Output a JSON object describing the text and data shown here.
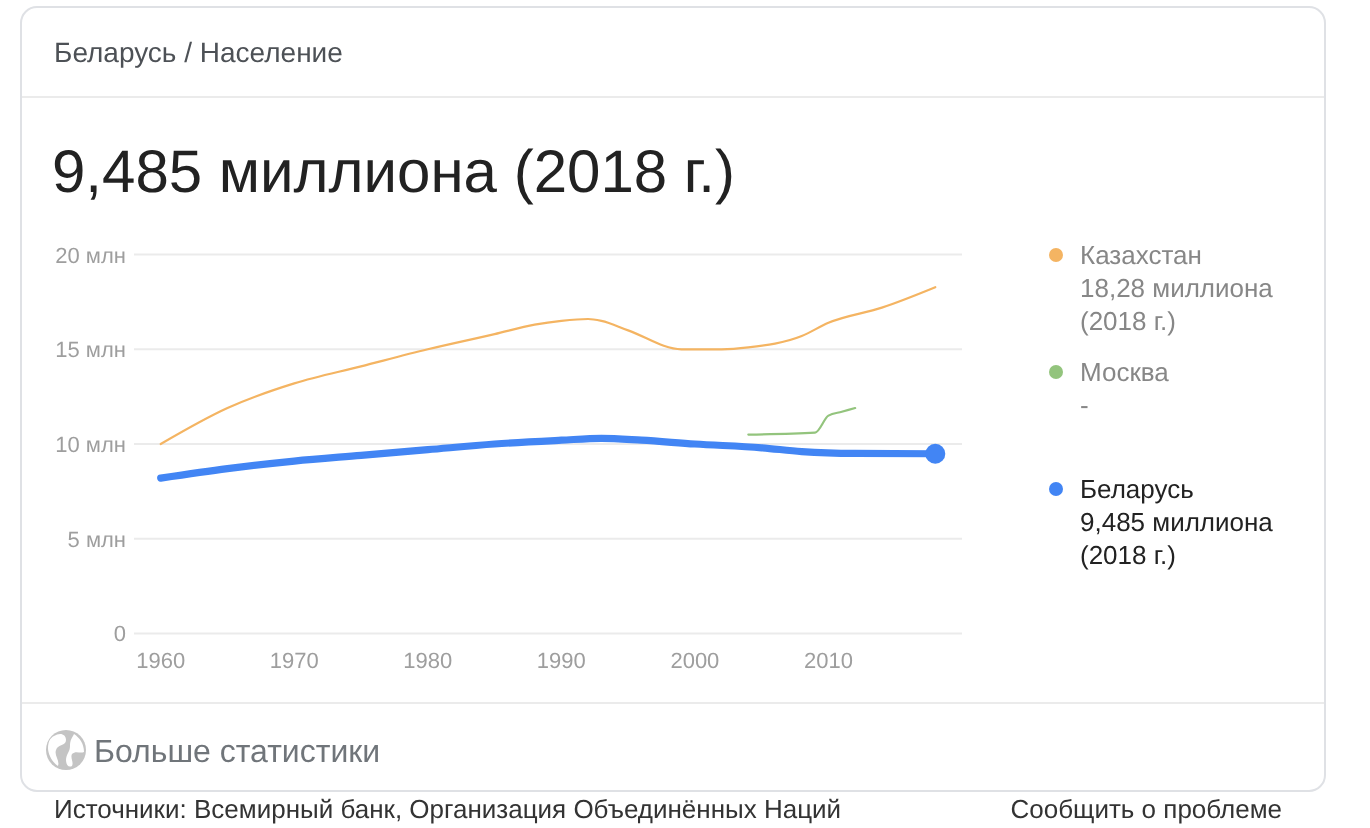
{
  "chart_data": {
    "type": "line",
    "title": "9,485 миллиона (2018 г.)",
    "subtitle": "Беларусь / Население",
    "xlim": [
      1958,
      2020
    ],
    "xticks": [
      1960,
      1970,
      1980,
      1990,
      2000,
      2010
    ],
    "ylim": [
      0,
      20
    ],
    "yticks": [
      0,
      {
        "value": 5,
        "label": "5 млн"
      },
      {
        "value": 10,
        "label": "10 млн"
      },
      {
        "value": 15,
        "label": "15 млн"
      },
      {
        "value": 20,
        "label": "20 млн"
      }
    ],
    "grid": "y",
    "legend": "right",
    "series": [
      {
        "name": "Казахстан",
        "color": "#f4b462",
        "x": [
          1960,
          1965,
          1970,
          1975,
          1980,
          1985,
          1988,
          1990,
          1992,
          1993,
          1995,
          1999,
          2002,
          2004,
          2008,
          2010,
          2014,
          2018
        ],
        "values": [
          10.0,
          11.9,
          13.2,
          14.1,
          15.0,
          15.8,
          16.3,
          16.5,
          16.6,
          16.5,
          16.0,
          15.0,
          15.0,
          15.1,
          15.7,
          16.4,
          17.2,
          18.28
        ]
      },
      {
        "name": "Москва",
        "color": "#93c47d",
        "x": [
          2004,
          2009,
          2010,
          2011,
          2012
        ],
        "values": [
          10.5,
          10.6,
          11.5,
          11.7,
          11.9
        ]
      },
      {
        "name": "Беларусь",
        "color": "#4285f4",
        "x": [
          1960,
          1965,
          1970,
          1975,
          1980,
          1985,
          1990,
          1993,
          1996,
          2000,
          2005,
          2008,
          2012,
          2018
        ],
        "values": [
          8.2,
          8.7,
          9.1,
          9.4,
          9.7,
          10.0,
          10.2,
          10.3,
          10.2,
          10.0,
          9.8,
          9.6,
          9.5,
          9.485
        ]
      },
      {
        "type": "scatter",
        "marker": "circle",
        "color": "#4285f4",
        "x": [
          2018
        ],
        "values": [
          9.485
        ]
      }
    ],
    "annotations": [
      "18,28 миллиона (2018 г.)",
      "-",
      "9,485 миллиона (2018 г.)",
      "Больше статистики",
      "Источники: Всемирный банк, Организация Объединённых Наций",
      "Сообщить о проблеме"
    ]
  }
}
